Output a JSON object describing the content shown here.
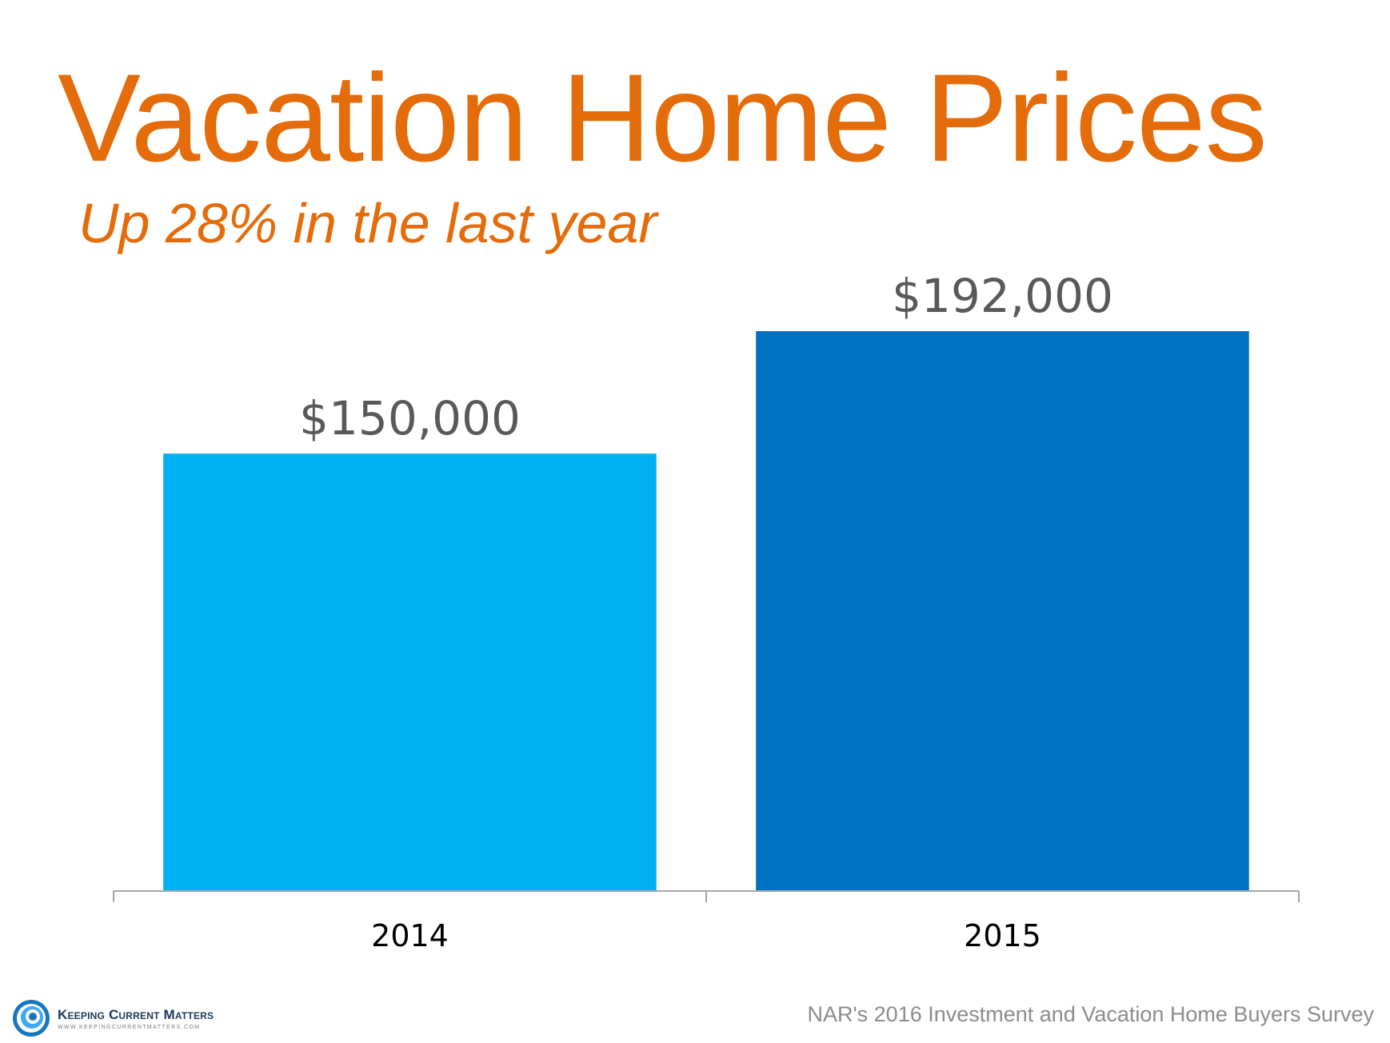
{
  "slide": {
    "title": "Vacation Home Prices",
    "subtitle": "Up 28% in the last year",
    "source": "NAR's 2016 Investment and Vacation Home Buyers Survey",
    "logo": {
      "name": "Keeping Current Matters",
      "url": "WWW.KEEPINGCURRENTMATTERS.COM"
    }
  },
  "colors": {
    "title": "#E46C0A",
    "bar_2014": "#00B0F0",
    "bar_2015": "#0070C0",
    "data_label": "#595959",
    "axis_label": "#000000",
    "axis_line": "#A6A6A6"
  },
  "chart_data": {
    "type": "bar",
    "categories": [
      "2014",
      "2015"
    ],
    "values": [
      150000,
      192000
    ],
    "data_labels": [
      "$150,000",
      "$192,000"
    ],
    "bar_colors": [
      "#00B0F0",
      "#0070C0"
    ],
    "title": "Vacation Home Prices",
    "subtitle": "Up 28% in the last year",
    "xlabel": "",
    "ylabel": "",
    "ylim": [
      0,
      200000
    ],
    "grid": false,
    "legend": "none"
  }
}
